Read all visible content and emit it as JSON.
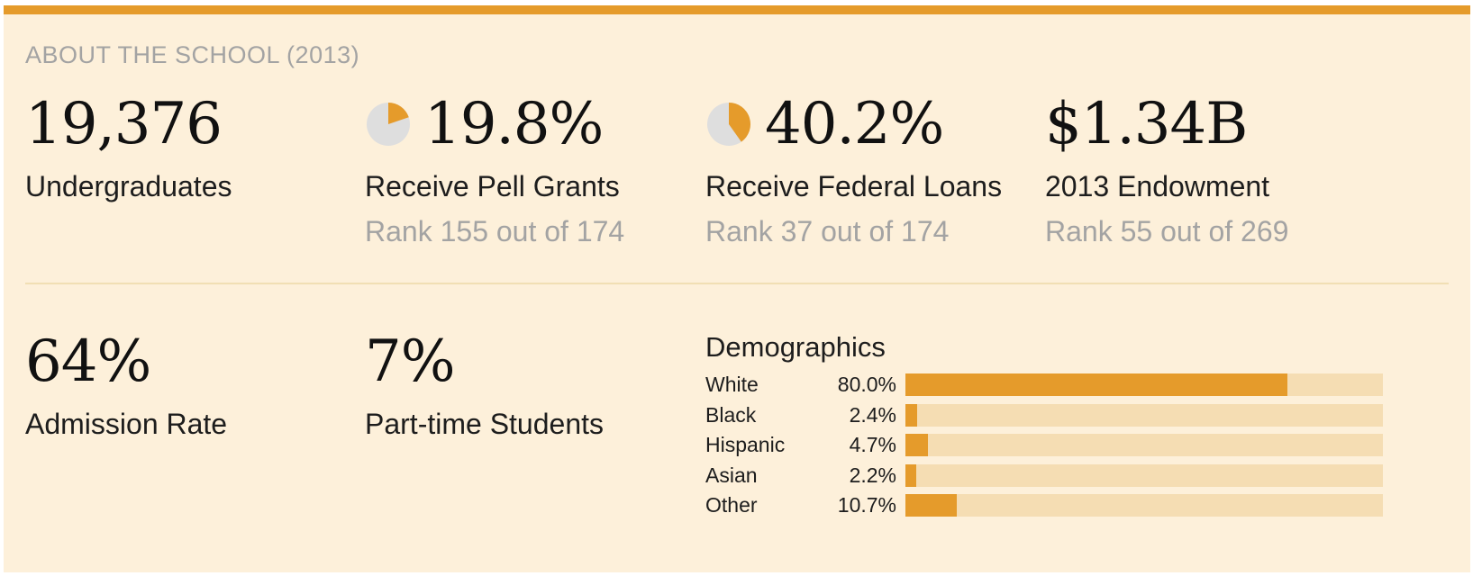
{
  "section_title": "ABOUT THE SCHOOL (2013)",
  "colors": {
    "accent": "#e59b2b",
    "background": "#fdf0da",
    "pie_empty": "#dedede",
    "bar_track": "#f5ddb3",
    "muted_text": "#a3a3a3"
  },
  "stats": {
    "undergraduates": {
      "value": "19,376",
      "label": "Undergraduates"
    },
    "pell": {
      "value": "19.8%",
      "label": "Receive Pell Grants",
      "rank": "Rank 155 out of 174",
      "fraction": 0.198
    },
    "loans": {
      "value": "40.2%",
      "label": "Receive Federal Loans",
      "rank": "Rank 37 out of 174",
      "fraction": 0.402
    },
    "endowment": {
      "value": "$1.34B",
      "label": "2013 Endowment",
      "rank": "Rank 55 out of 269"
    },
    "admission": {
      "value": "64%",
      "label": "Admission Rate"
    },
    "parttime": {
      "value": "7%",
      "label": "Part-time Students"
    }
  },
  "chart_data": {
    "type": "bar",
    "title": "Demographics",
    "categories": [
      "White",
      "Black",
      "Hispanic",
      "Asian",
      "Other"
    ],
    "values": [
      80.0,
      2.4,
      4.7,
      2.2,
      10.7
    ],
    "value_labels": [
      "80.0%",
      "2.4%",
      "4.7%",
      "2.2%",
      "10.7%"
    ],
    "ylim": [
      0,
      100
    ],
    "orientation": "horizontal",
    "grid": false
  }
}
